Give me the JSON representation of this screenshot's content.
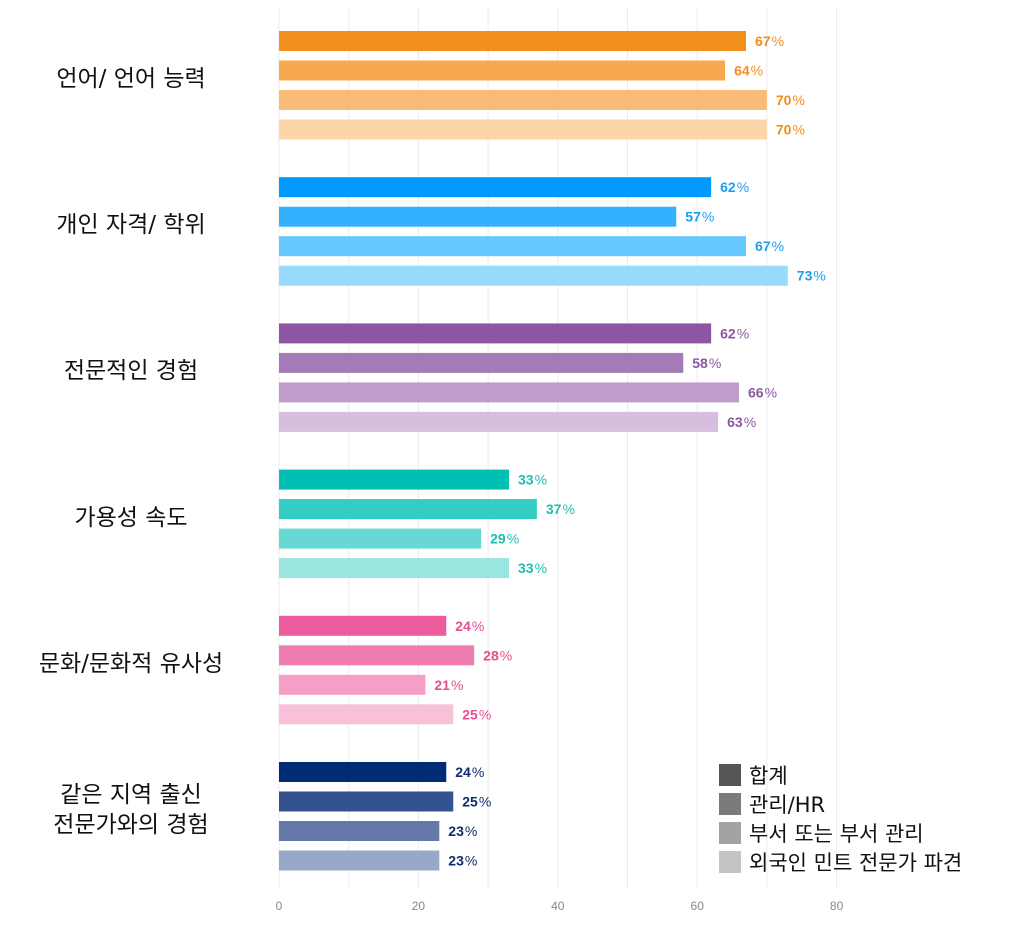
{
  "chart_data": {
    "type": "bar",
    "orientation": "horizontal",
    "xlim": [
      0,
      80
    ],
    "xticks": [
      0,
      20,
      40,
      60,
      80
    ],
    "grid": true,
    "legend_position": "bottom-right",
    "value_suffix": "%",
    "categories": [
      {
        "label_lines": [
          "언어/ 언어 능력"
        ],
        "color": "#f28e1c",
        "colors": [
          "#f28e1c",
          "#f8a94e",
          "#fabb78",
          "#fcd5a8"
        ],
        "values": [
          67,
          64,
          70,
          70
        ]
      },
      {
        "label_lines": [
          "개인 자격/ 학위"
        ],
        "color": "#1aa0f0",
        "colors": [
          "#0099ff",
          "#33b1ff",
          "#66c7ff",
          "#99dbff"
        ],
        "values": [
          62,
          57,
          67,
          73
        ]
      },
      {
        "label_lines": [
          "전문적인 경험"
        ],
        "color": "#8b57a3",
        "colors": [
          "#8c56a2",
          "#a57ab9",
          "#c09ccc",
          "#d7bedf"
        ],
        "values": [
          62,
          58,
          66,
          63
        ]
      },
      {
        "label_lines": [
          "가용성 속도"
        ],
        "color": "#1dbfb0",
        "colors": [
          "#00bfb3",
          "#33cdc3",
          "#66dad2",
          "#99e6e1"
        ],
        "values": [
          33,
          37,
          29,
          33
        ]
      },
      {
        "label_lines": [
          "문화/문화적 유사성"
        ],
        "color": "#e84c91",
        "colors": [
          "#ec5b9c",
          "#f07db1",
          "#f59fc6",
          "#f9c0da"
        ],
        "values": [
          24,
          28,
          21,
          25
        ]
      },
      {
        "label_lines": [
          "같은 지역 출신",
          "전문가와의 경험"
        ],
        "color": "#0f2c6e",
        "colors": [
          "#022b75",
          "#33528f",
          "#6678aa",
          "#99a8c8"
        ],
        "values": [
          24,
          25,
          23,
          23
        ]
      }
    ],
    "series": [
      {
        "name": "합계",
        "color": "#555555"
      },
      {
        "name": "관리/HR",
        "color": "#7a7a7a"
      },
      {
        "name": "부서 또는 부서 관리",
        "color": "#a3a3a3"
      },
      {
        "name": "외국인 민트 전문가 파견",
        "color": "#c4c4c4"
      }
    ]
  }
}
